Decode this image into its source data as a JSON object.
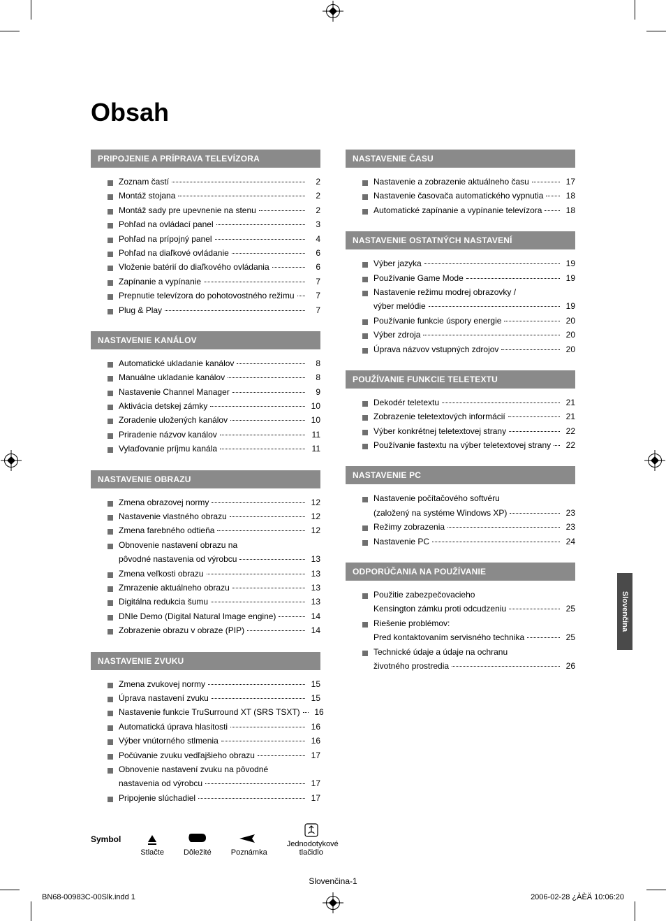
{
  "colors": {
    "section_header_bg": "#8a8a8a",
    "section_header_text": "#ffffff",
    "bullet": "#6f6f6f",
    "body_text": "#000000",
    "side_tab_bg": "#4a4a4a",
    "side_tab_text": "#ffffff",
    "page_bg": "#ffffff"
  },
  "typography": {
    "title_fontsize_pt": 27,
    "section_header_fontsize_pt": 9,
    "body_fontsize_pt": 9,
    "footer_fontsize_pt": 8
  },
  "title": "Obsah",
  "side_tab": "Slovenčina",
  "page_number": "Slovenčina-1",
  "footer_left": "BN68-00983C-00Slk.indd   1",
  "footer_right": "2006-02-28   ¿ÀÈÄ 10:06:20",
  "symbols": {
    "head": "Symbol",
    "press": "Stlačte",
    "important": "Dôležité",
    "note": "Poznámka",
    "onetouch_line1": "Jednodotykové",
    "onetouch_line2": "tlačidlo"
  },
  "left_sections": [
    {
      "title": "PRIPOJENIE A PRÍPRAVA TELEVÍZORA",
      "items": [
        {
          "label": "Zoznam častí",
          "page": "2"
        },
        {
          "label": "Montáž stojana",
          "page": "2"
        },
        {
          "label": "Montáž sady pre upevnenie na stenu",
          "page": "2"
        },
        {
          "label": "Pohľad na ovládací panel",
          "page": "3"
        },
        {
          "label": "Pohľad na prípojný panel",
          "page": "4"
        },
        {
          "label": "Pohľad na diaľkové ovládanie",
          "page": "6"
        },
        {
          "label": "Vloženie batérií do diaľkového ovládania",
          "page": "6"
        },
        {
          "label": "Zapínanie a vypínanie",
          "page": "7"
        },
        {
          "label": "Prepnutie televízora do pohotovostného režimu",
          "page": "7"
        },
        {
          "label": "Plug & Play",
          "page": "7"
        }
      ]
    },
    {
      "title": "NASTAVENIE KANÁLOV",
      "items": [
        {
          "label": "Automatické ukladanie kanálov",
          "page": "8"
        },
        {
          "label": "Manuálne ukladanie kanálov",
          "page": "8"
        },
        {
          "label": "Nastavenie Channel Manager",
          "page": "9"
        },
        {
          "label": "Aktivácia detskej zámky",
          "page": "10"
        },
        {
          "label": "Zoradenie uložených kanálov",
          "page": "10"
        },
        {
          "label": "Priradenie názvov kanálov",
          "page": "11"
        },
        {
          "label": "Vylaďovanie príjmu kanála",
          "page": "11"
        }
      ]
    },
    {
      "title": "NASTAVENIE OBRAZU",
      "items": [
        {
          "label": "Zmena obrazovej normy",
          "page": "12"
        },
        {
          "label": "Nastavenie vlastného obrazu",
          "page": "12"
        },
        {
          "label": "Zmena farebného odtieňa",
          "page": "12"
        },
        {
          "label": "Obnovenie nastavení obrazu na",
          "page": ""
        },
        {
          "label": "pôvodné nastavenia od výrobcu",
          "page": "13",
          "cont": true
        },
        {
          "label": "Zmena veľkosti obrazu",
          "page": "13"
        },
        {
          "label": "Zmrazenie aktuálneho obrazu",
          "page": "13"
        },
        {
          "label": "Digitálna redukcia šumu",
          "page": "13"
        },
        {
          "label": "DNIe Demo (Digital Natural Image engine)",
          "page": "14"
        },
        {
          "label": "Zobrazenie obrazu v obraze (PIP)",
          "page": "14"
        }
      ]
    },
    {
      "title": "NASTAVENIE ZVUKU",
      "items": [
        {
          "label": "Zmena zvukovej normy",
          "page": "15"
        },
        {
          "label": "Úprava nastavení zvuku",
          "page": "15"
        },
        {
          "label": "Nastavenie funkcie TruSurround XT (SRS TSXT)",
          "page": "16"
        },
        {
          "label": "Automatická úprava hlasitosti",
          "page": "16"
        },
        {
          "label": "Výber vnútorného stlmenia",
          "page": "16"
        },
        {
          "label": "Počúvanie zvuku vedľajšieho obrazu",
          "page": "17"
        },
        {
          "label": "Obnovenie nastavení zvuku na pôvodné",
          "page": ""
        },
        {
          "label": "nastavenia od výrobcu",
          "page": "17",
          "cont": true
        },
        {
          "label": "Pripojenie slúchadiel",
          "page": "17"
        }
      ]
    }
  ],
  "right_sections": [
    {
      "title": "NASTAVENIE ČASU",
      "items": [
        {
          "label": "Nastavenie a zobrazenie aktuálneho času",
          "page": "17"
        },
        {
          "label": "Nastavenie časovača automatického vypnutia",
          "page": "18"
        },
        {
          "label": "Automatické zapínanie a vypínanie televízora",
          "page": "18"
        }
      ]
    },
    {
      "title": "NASTAVENIE OSTATNÝCH NASTAVENÍ",
      "items": [
        {
          "label": "Výber jazyka",
          "page": "19"
        },
        {
          "label": "Používanie Game Mode",
          "page": "19"
        },
        {
          "label": "Nastavenie režimu modrej obrazovky /",
          "page": ""
        },
        {
          "label": "výber melódie",
          "page": "19",
          "cont": true
        },
        {
          "label": "Používanie funkcie úspory energie",
          "page": "20"
        },
        {
          "label": "Výber zdroja",
          "page": "20"
        },
        {
          "label": "Úprava názvov vstupných zdrojov",
          "page": "20"
        }
      ]
    },
    {
      "title": "POUŽÍVANIE FUNKCIE TELETEXTU",
      "items": [
        {
          "label": "Dekodér teletextu",
          "page": "21"
        },
        {
          "label": "Zobrazenie teletextových informácií",
          "page": "21"
        },
        {
          "label": "Výber konkrétnej teletextovej strany",
          "page": "22"
        },
        {
          "label": "Používanie fastextu na výber teletextovej strany",
          "page": "22"
        }
      ]
    },
    {
      "title": "NASTAVENIE PC",
      "items": [
        {
          "label": "Nastavenie počítačového softvéru",
          "page": ""
        },
        {
          "label": "(založený na systéme Windows XP)",
          "page": "23",
          "cont": true
        },
        {
          "label": "Režimy zobrazenia",
          "page": "23"
        },
        {
          "label": "Nastavenie PC",
          "page": "24"
        }
      ]
    },
    {
      "title": "ODPORÚČANIA NA POUŽÍVANIE",
      "items": [
        {
          "label": "Použitie zabezpečovacieho",
          "page": ""
        },
        {
          "label": "Kensington zámku proti odcudzeniu",
          "page": "25",
          "cont": true
        },
        {
          "label": "Riešenie problémov:",
          "page": ""
        },
        {
          "label": "Pred kontaktovaním servisného technika",
          "page": "25",
          "cont": true
        },
        {
          "label": "Technické údaje a údaje na ochranu",
          "page": ""
        },
        {
          "label": "životného prostredia",
          "page": "26",
          "cont": true
        }
      ]
    }
  ]
}
